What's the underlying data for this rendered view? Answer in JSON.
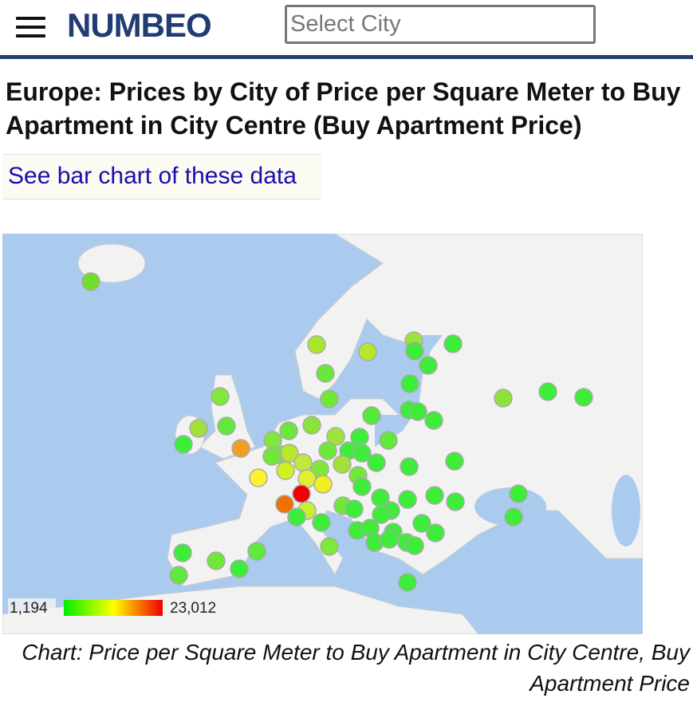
{
  "header": {
    "logo": "NUMBEO",
    "search_placeholder": "Select City"
  },
  "title": "Europe: Prices by City of Price per Square Meter to Buy Apartment in City Centre (Buy Apartment Price)",
  "link": "See bar chart of these data",
  "map": {
    "legend": {
      "min": "1,194",
      "max": "23,012"
    }
  },
  "caption": "Chart: Price per Square Meter to Buy Apartment in City Centre, Buy Apartment Price"
}
